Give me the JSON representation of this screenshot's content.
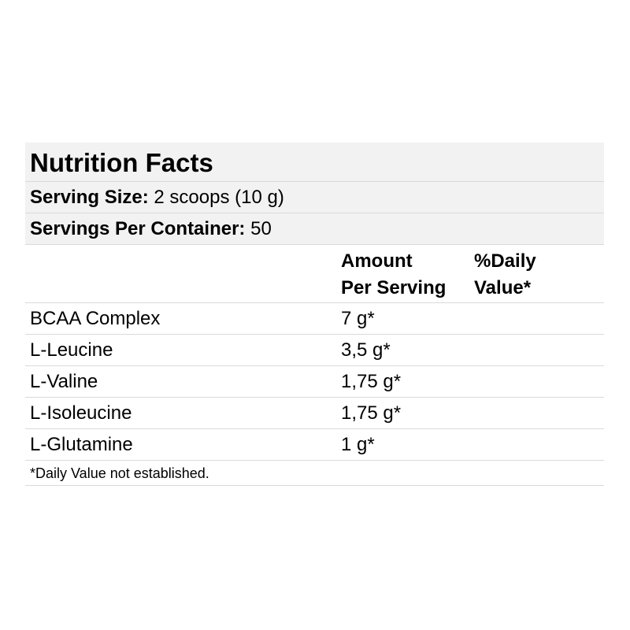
{
  "title": "Nutrition Facts",
  "serving_size": {
    "label": "Serving Size:",
    "value": "2 scoops (10 g)"
  },
  "servings_per_container": {
    "label": "Servings Per Container:",
    "value": "50"
  },
  "headers": {
    "amount_line1": "Amount",
    "amount_line2": "Per Serving",
    "dv_line1": "%Daily",
    "dv_line2": "Value*"
  },
  "rows": [
    {
      "name": "BCAA Complex",
      "amount": "7 g*"
    },
    {
      "name": "L-Leucine",
      "amount": "3,5 g*"
    },
    {
      "name": "L-Valine",
      "amount": "1,75 g*"
    },
    {
      "name": "L-Isoleucine",
      "amount": "1,75 g*"
    },
    {
      "name": "L-Glutamine",
      "amount": "1 g*"
    }
  ],
  "footnote": "*Daily Value not established.",
  "colors": {
    "band": "#f2f2f2",
    "rule": "#d9d9d9",
    "text": "#000000"
  }
}
